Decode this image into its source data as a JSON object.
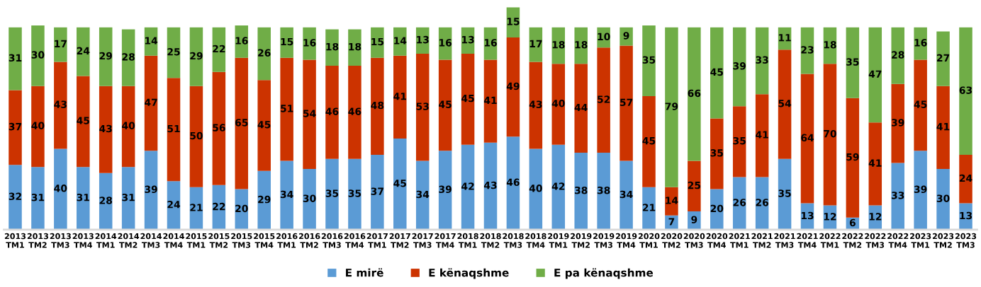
{
  "chart_data": {
    "type": "bar",
    "stacked": true,
    "data_labels": true,
    "legend": "bottom",
    "grid": false,
    "categories": [
      "2013\nTM1",
      "2013\nTM2",
      "2013\nTM3",
      "2013\nTM4",
      "2014\nTM1",
      "2014\nTM2",
      "2014\nTM3",
      "2014\nTM4",
      "2015\nTM1",
      "2015\nTM2",
      "2015\nTM3",
      "2015\nTM4",
      "2016\nTM1",
      "2016\nTM2",
      "2016\nTM3",
      "2016\nTM4",
      "2017\nTM1",
      "2017\nTM2",
      "2017\nTM3",
      "2017\nTM4",
      "2018\nTM1",
      "2018\nTM2",
      "2018\nTM3",
      "2018\nTM4",
      "2019\nTM1",
      "2019\nTM2",
      "2019\nTM3",
      "2019\nTM4",
      "2020\nTM1",
      "2020\nTM2",
      "2020\nTM3",
      "2020\nTM4",
      "2021\nTM1",
      "2021\nTM2",
      "2021\nTM3",
      "2021\nTM4",
      "2022\nTM1",
      "2022\nTM2",
      "2022\nTM3",
      "2022\nTM4",
      "2023\nTM1",
      "2023\nTM2",
      "2023\nTM3"
    ],
    "series": [
      {
        "name": "E mirë",
        "color": "#5b9bd5",
        "values": [
          32,
          31,
          40,
          31,
          28,
          31,
          39,
          24,
          21,
          22,
          20,
          29,
          34,
          30,
          35,
          35,
          37,
          45,
          34,
          39,
          42,
          43,
          46,
          40,
          42,
          38,
          38,
          34,
          21,
          7,
          9,
          20,
          26,
          26,
          35,
          13,
          12,
          6,
          12,
          33,
          39,
          30,
          13
        ]
      },
      {
        "name": "E kënaqshme",
        "color": "#cc3300",
        "values": [
          37,
          40,
          43,
          45,
          43,
          40,
          47,
          51,
          50,
          56,
          65,
          45,
          51,
          54,
          46,
          46,
          48,
          41,
          53,
          45,
          45,
          41,
          49,
          43,
          40,
          44,
          52,
          57,
          45,
          14,
          25,
          35,
          35,
          41,
          54,
          64,
          70,
          59,
          41,
          39,
          45,
          41,
          24
        ]
      },
      {
        "name": "E pa kënaqshme",
        "color": "#70ad47",
        "values": [
          31,
          30,
          17,
          24,
          29,
          28,
          14,
          25,
          29,
          22,
          16,
          26,
          15,
          16,
          18,
          18,
          15,
          14,
          13,
          16,
          13,
          16,
          15,
          17,
          18,
          18,
          10,
          9,
          35,
          79,
          66,
          45,
          39,
          33,
          11,
          23,
          18,
          35,
          47,
          28,
          16,
          27,
          63
        ]
      }
    ]
  }
}
